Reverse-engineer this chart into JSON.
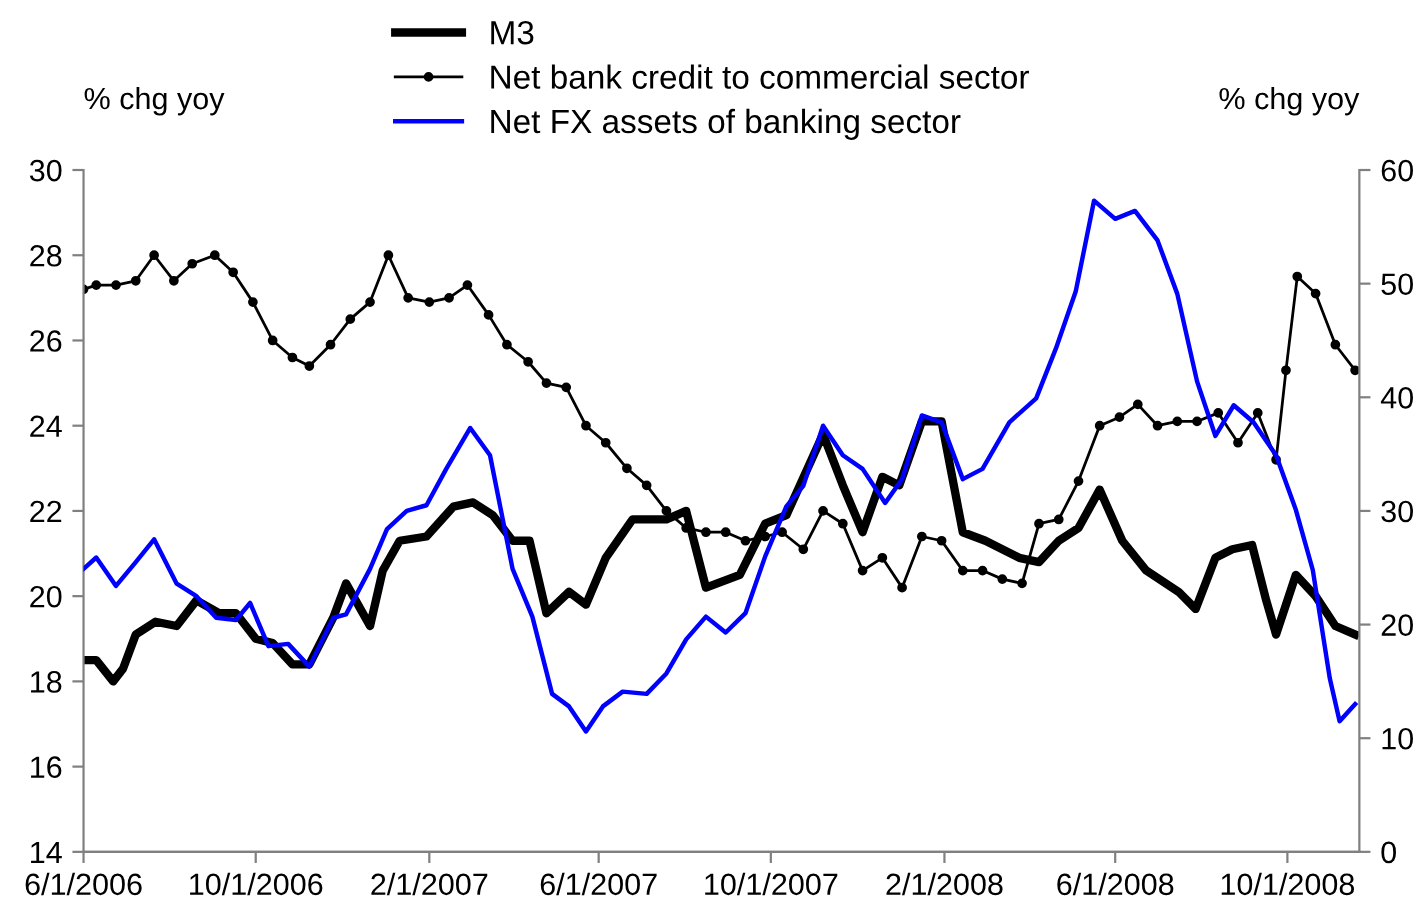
{
  "chart_data": {
    "type": "line",
    "ylabel": "% chg yoy",
    "y2label": "% chg yoy",
    "xlim": [
      "2006-06-01",
      "2008-11-21"
    ],
    "xticks": [
      {
        "value": "2006-06-01",
        "label": "6/1/2006"
      },
      {
        "value": "2006-10-01",
        "label": "10/1/2006"
      },
      {
        "value": "2007-02-01",
        "label": "2/1/2007"
      },
      {
        "value": "2007-06-01",
        "label": "6/1/2007"
      },
      {
        "value": "2007-10-01",
        "label": "10/1/2007"
      },
      {
        "value": "2008-02-01",
        "label": "2/1/2008"
      },
      {
        "value": "2008-06-01",
        "label": "6/1/2008"
      },
      {
        "value": "2008-10-01",
        "label": "10/1/2008"
      }
    ],
    "ylim": [
      14,
      30
    ],
    "yticks": [
      14,
      16,
      18,
      20,
      22,
      24,
      26,
      28,
      30
    ],
    "y2lim": [
      0,
      60
    ],
    "y2ticks": [
      0,
      10,
      20,
      30,
      40,
      50,
      60
    ],
    "legend": "top",
    "grid": false,
    "series": [
      {
        "name": "M3",
        "color": "#000000",
        "marker": "none",
        "x": [
          "2006-06-01",
          "2006-06-10",
          "2006-06-22",
          "2006-06-29",
          "2006-07-08",
          "2006-07-22",
          "2006-08-06",
          "2006-08-20",
          "2006-09-05",
          "2006-09-17",
          "2006-10-01",
          "2006-10-13",
          "2006-10-27",
          "2006-11-08",
          "2006-11-25",
          "2006-12-04",
          "2006-12-21",
          "2006-12-30",
          "2007-01-11",
          "2007-01-30",
          "2007-02-18",
          "2007-03-04",
          "2007-03-18",
          "2007-04-01",
          "2007-04-13",
          "2007-04-25",
          "2007-05-11",
          "2007-05-23",
          "2007-06-06",
          "2007-06-25",
          "2007-07-19",
          "2007-08-02",
          "2007-08-16",
          "2007-09-09",
          "2007-09-27",
          "2007-10-12",
          "2007-11-07",
          "2007-11-21",
          "2007-12-05",
          "2007-12-19",
          "2007-12-31",
          "2008-01-16",
          "2008-01-30",
          "2008-02-14",
          "2008-03-01",
          "2008-03-25",
          "2008-04-08",
          "2008-04-22",
          "2008-05-06",
          "2008-05-21",
          "2008-06-06",
          "2008-06-23",
          "2008-07-16",
          "2008-07-28",
          "2008-08-11",
          "2008-08-23",
          "2008-09-06",
          "2008-09-16",
          "2008-09-23",
          "2008-10-07",
          "2008-10-21",
          "2008-11-04",
          "2008-11-18"
        ],
        "values": [
          18.5,
          18.5,
          18.0,
          18.3,
          19.1,
          19.4,
          19.3,
          19.9,
          19.6,
          19.6,
          19.0,
          18.9,
          18.4,
          18.4,
          19.5,
          20.3,
          19.3,
          20.6,
          21.3,
          21.4,
          22.1,
          22.2,
          21.9,
          21.3,
          21.3,
          19.6,
          20.1,
          19.8,
          20.9,
          21.8,
          21.8,
          22.0,
          20.2,
          20.5,
          21.7,
          21.9,
          23.8,
          22.6,
          21.5,
          22.8,
          22.6,
          24.1,
          24.1,
          21.5,
          21.3,
          20.9,
          20.8,
          21.3,
          21.6,
          22.5,
          21.3,
          20.6,
          20.1,
          19.7,
          20.9,
          21.1,
          21.2,
          19.9,
          19.1,
          20.5,
          20.0,
          19.3,
          19.1
        ]
      },
      {
        "name": "Net bank credit to commercial sector",
        "color": "#000000",
        "marker": "circle",
        "x": [
          "2006-06-01",
          "2006-06-10",
          "2006-06-24",
          "2006-07-08",
          "2006-07-21",
          "2006-08-04",
          "2006-08-17",
          "2006-09-02",
          "2006-09-15",
          "2006-09-29",
          "2006-10-13",
          "2006-10-27",
          "2006-11-08",
          "2006-11-23",
          "2006-12-07",
          "2006-12-21",
          "2007-01-03",
          "2007-01-17",
          "2007-02-01",
          "2007-02-15",
          "2007-02-28",
          "2007-03-15",
          "2007-03-28",
          "2007-04-12",
          "2007-04-25",
          "2007-05-09",
          "2007-05-23",
          "2007-06-06",
          "2007-06-21",
          "2007-07-05",
          "2007-07-19",
          "2007-08-02",
          "2007-08-16",
          "2007-08-30",
          "2007-09-13",
          "2007-09-27",
          "2007-10-09",
          "2007-10-24",
          "2007-11-07",
          "2007-11-21",
          "2007-12-05",
          "2007-12-19",
          "2008-01-02",
          "2008-01-16",
          "2008-01-30",
          "2008-02-14",
          "2008-02-28",
          "2008-03-13",
          "2008-03-27",
          "2008-04-08",
          "2008-04-22",
          "2008-05-06",
          "2008-05-21",
          "2008-06-04",
          "2008-06-17",
          "2008-07-01",
          "2008-07-15",
          "2008-07-29",
          "2008-08-13",
          "2008-08-27",
          "2008-09-10",
          "2008-09-23",
          "2008-09-30",
          "2008-10-08",
          "2008-10-21",
          "2008-11-04",
          "2008-11-18"
        ],
        "values": [
          27.2,
          27.3,
          27.3,
          27.4,
          28.0,
          27.4,
          27.8,
          28.0,
          27.6,
          26.9,
          26.0,
          25.6,
          25.4,
          25.9,
          26.5,
          26.9,
          28.0,
          27.0,
          26.9,
          27.0,
          27.3,
          26.6,
          25.9,
          25.5,
          25.0,
          24.9,
          24.0,
          23.6,
          23.0,
          22.6,
          22.0,
          21.6,
          21.5,
          21.5,
          21.3,
          21.4,
          21.5,
          21.1,
          22.0,
          21.7,
          20.6,
          20.9,
          20.2,
          21.4,
          21.3,
          20.6,
          20.6,
          20.4,
          20.3,
          21.7,
          21.8,
          22.7,
          24.0,
          24.2,
          24.5,
          24.0,
          24.1,
          24.1,
          24.3,
          23.6,
          24.3,
          23.2,
          25.3,
          27.5,
          27.1,
          25.9,
          25.3
        ]
      },
      {
        "name": "Net FX assets of banking sector",
        "color": "#0000ff",
        "axis": "y2",
        "marker": "none",
        "x": [
          "2006-06-01",
          "2006-06-10",
          "2006-06-24",
          "2006-07-08",
          "2006-07-21",
          "2006-08-06",
          "2006-08-20",
          "2006-09-03",
          "2006-09-17",
          "2006-09-27",
          "2006-10-10",
          "2006-10-24",
          "2006-11-08",
          "2006-11-25",
          "2006-12-04",
          "2006-12-21",
          "2007-01-02",
          "2007-01-16",
          "2007-01-30",
          "2007-02-13",
          "2007-03-02",
          "2007-03-16",
          "2007-04-01",
          "2007-04-15",
          "2007-04-29",
          "2007-05-11",
          "2007-05-23",
          "2007-06-04",
          "2007-06-18",
          "2007-07-05",
          "2007-07-19",
          "2007-08-02",
          "2007-08-16",
          "2007-08-30",
          "2007-09-13",
          "2007-09-27",
          "2007-10-12",
          "2007-10-24",
          "2007-11-07",
          "2007-11-21",
          "2007-12-05",
          "2007-12-21",
          "2008-01-02",
          "2008-01-16",
          "2008-01-30",
          "2008-02-14",
          "2008-02-28",
          "2008-03-18",
          "2008-04-06",
          "2008-04-20",
          "2008-05-04",
          "2008-05-17",
          "2008-06-01",
          "2008-06-15",
          "2008-07-01",
          "2008-07-15",
          "2008-07-29",
          "2008-08-11",
          "2008-08-24",
          "2008-09-07",
          "2008-09-23",
          "2008-10-07",
          "2008-10-19",
          "2008-10-31",
          "2008-11-07",
          "2008-11-18"
        ],
        "values": [
          24.9,
          25.9,
          23.4,
          25.5,
          27.5,
          23.6,
          22.5,
          20.6,
          20.4,
          21.9,
          18.1,
          18.3,
          16.3,
          20.6,
          20.9,
          24.9,
          28.4,
          30.0,
          30.5,
          33.7,
          37.3,
          34.9,
          24.9,
          20.7,
          13.9,
          12.8,
          10.6,
          12.8,
          14.1,
          13.9,
          15.7,
          18.7,
          20.7,
          19.3,
          21.0,
          26.0,
          30.4,
          32.2,
          37.5,
          34.9,
          33.7,
          30.7,
          32.8,
          38.4,
          37.8,
          32.8,
          33.7,
          37.8,
          39.9,
          44.3,
          49.3,
          57.3,
          55.7,
          56.4,
          53.8,
          49.1,
          41.4,
          36.6,
          39.3,
          37.8,
          34.9,
          30.1,
          24.8,
          15.3,
          11.5,
          13.0
        ]
      }
    ]
  }
}
